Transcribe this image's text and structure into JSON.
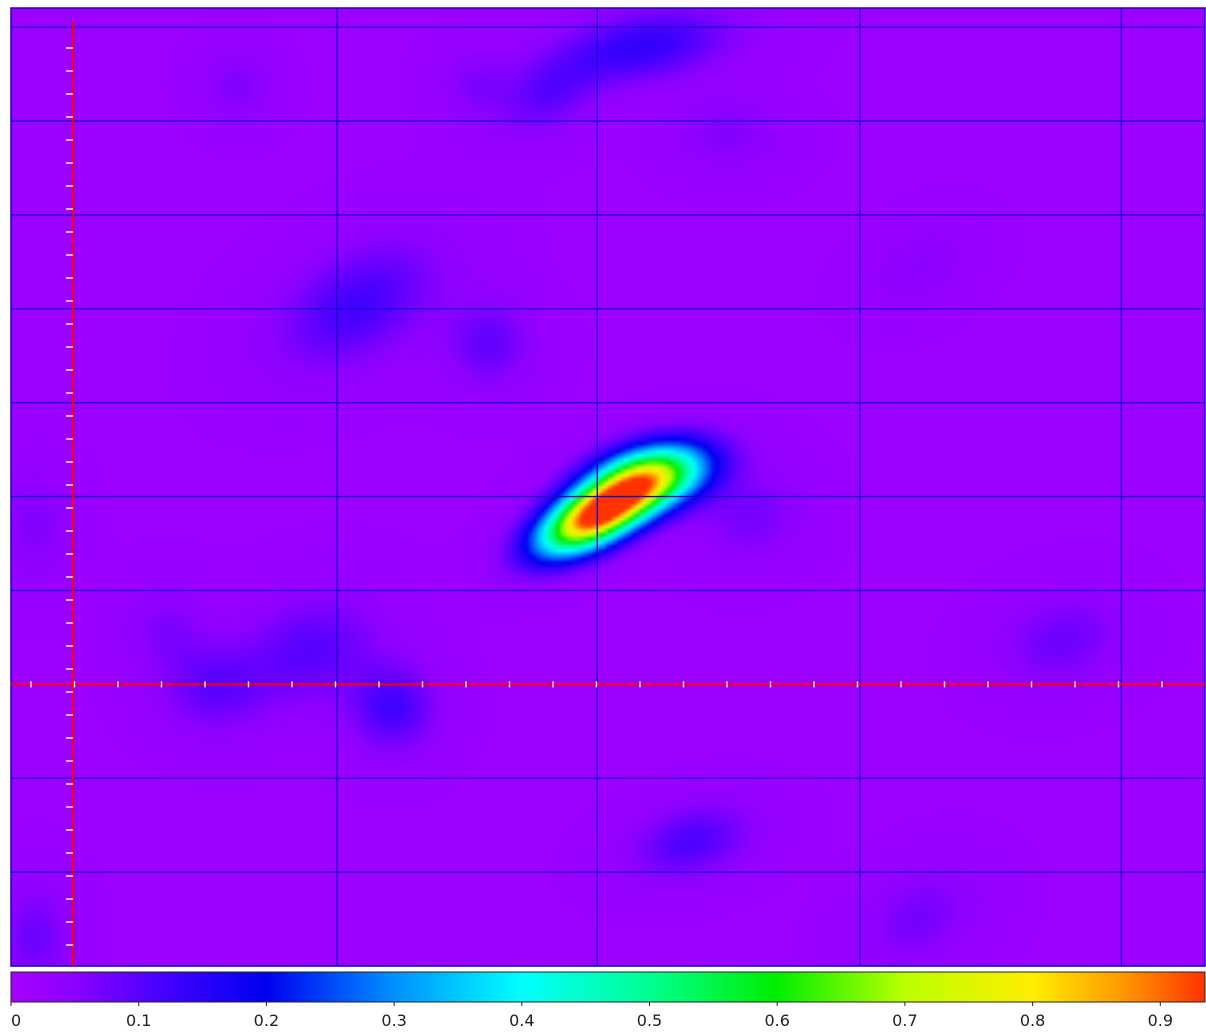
{
  "chart_data": {
    "type": "heatmap",
    "colorscale": {
      "min": 0,
      "max": 0.935,
      "ticks": [
        {
          "value": 0,
          "label": "0"
        },
        {
          "value": 0.1,
          "label": "0.1"
        },
        {
          "value": 0.2,
          "label": "0.2"
        },
        {
          "value": 0.3,
          "label": "0.3"
        },
        {
          "value": 0.4,
          "label": "0.4"
        },
        {
          "value": 0.5,
          "label": "0.5"
        },
        {
          "value": 0.6,
          "label": "0.6"
        },
        {
          "value": 0.7,
          "label": "0.7"
        },
        {
          "value": 0.8,
          "label": "0.8"
        },
        {
          "value": 0.9,
          "label": "0.9"
        }
      ],
      "stops": [
        {
          "value": 0.0,
          "color": "#a600ff"
        },
        {
          "value": 0.05,
          "color": "#8c00ff"
        },
        {
          "value": 0.12,
          "color": "#4400ff"
        },
        {
          "value": 0.2,
          "color": "#0000f0"
        },
        {
          "value": 0.3,
          "color": "#0090ff"
        },
        {
          "value": 0.4,
          "color": "#00ffff"
        },
        {
          "value": 0.5,
          "color": "#00ff90"
        },
        {
          "value": 0.6,
          "color": "#00ee00"
        },
        {
          "value": 0.7,
          "color": "#bbff00"
        },
        {
          "value": 0.8,
          "color": "#ffee00"
        },
        {
          "value": 0.87,
          "color": "#ff9900"
        },
        {
          "value": 0.935,
          "color": "#ff3300"
        }
      ]
    },
    "background_value": 0.02,
    "peaks": [
      {
        "name": "main",
        "x": 0.49,
        "y": 0.53,
        "sx": 0.036,
        "sy": 0.016,
        "angle": -28,
        "value": 0.92
      },
      {
        "name": "main-shoulder",
        "x": 0.535,
        "y": 0.49,
        "sx": 0.035,
        "sy": 0.018,
        "angle": -15,
        "value": 0.62
      },
      {
        "x": 0.53,
        "y": 0.04,
        "sx": 0.05,
        "sy": 0.02,
        "angle": -10,
        "value": 0.12
      },
      {
        "x": 0.45,
        "y": 0.09,
        "sx": 0.03,
        "sy": 0.02,
        "angle": -30,
        "value": 0.07
      },
      {
        "x": 0.39,
        "y": 0.08,
        "sx": 0.02,
        "sy": 0.02,
        "angle": 0,
        "value": 0.04
      },
      {
        "x": 0.29,
        "y": 0.31,
        "sx": 0.05,
        "sy": 0.03,
        "angle": -30,
        "value": 0.1
      },
      {
        "x": 0.4,
        "y": 0.35,
        "sx": 0.025,
        "sy": 0.025,
        "angle": 0,
        "value": 0.07
      },
      {
        "x": 0.19,
        "y": 0.08,
        "sx": 0.02,
        "sy": 0.02,
        "angle": 0,
        "value": 0.04
      },
      {
        "x": 0.6,
        "y": 0.13,
        "sx": 0.03,
        "sy": 0.02,
        "angle": 0,
        "value": 0.04
      },
      {
        "x": 0.62,
        "y": 0.53,
        "sx": 0.03,
        "sy": 0.025,
        "angle": -20,
        "value": 0.05
      },
      {
        "x": 0.25,
        "y": 0.67,
        "sx": 0.04,
        "sy": 0.03,
        "angle": -20,
        "value": 0.08
      },
      {
        "x": 0.17,
        "y": 0.71,
        "sx": 0.03,
        "sy": 0.025,
        "angle": 0,
        "value": 0.07
      },
      {
        "x": 0.32,
        "y": 0.73,
        "sx": 0.025,
        "sy": 0.025,
        "angle": 0,
        "value": 0.1
      },
      {
        "x": 0.57,
        "y": 0.87,
        "sx": 0.035,
        "sy": 0.02,
        "angle": -15,
        "value": 0.09
      },
      {
        "x": 0.76,
        "y": 0.95,
        "sx": 0.035,
        "sy": 0.025,
        "angle": -30,
        "value": 0.05
      },
      {
        "x": 0.88,
        "y": 0.66,
        "sx": 0.035,
        "sy": 0.025,
        "angle": -15,
        "value": 0.06
      },
      {
        "x": 0.02,
        "y": 0.97,
        "sx": 0.02,
        "sy": 0.03,
        "angle": 0,
        "value": 0.06
      },
      {
        "x": 0.02,
        "y": 0.54,
        "sx": 0.02,
        "sy": 0.03,
        "angle": 0,
        "value": 0.04
      },
      {
        "x": 0.76,
        "y": 0.27,
        "sx": 0.03,
        "sy": 0.02,
        "angle": -30,
        "value": 0.03
      },
      {
        "x": 0.13,
        "y": 0.65,
        "sx": 0.025,
        "sy": 0.025,
        "angle": 0,
        "value": 0.04
      }
    ],
    "grid": {
      "visible": true,
      "color": "#1c00c8",
      "vertical_at": [
        0.273,
        0.491,
        0.711,
        0.93
      ],
      "horizontal_at": [
        0.02,
        0.118,
        0.216,
        0.314,
        0.412,
        0.51,
        0.608,
        0.706,
        0.804,
        0.902,
        1.0
      ]
    },
    "crosshair": {
      "color": "#ff0000",
      "x": 0.052,
      "y": 0.706,
      "tick_color": "#ffffff"
    }
  }
}
